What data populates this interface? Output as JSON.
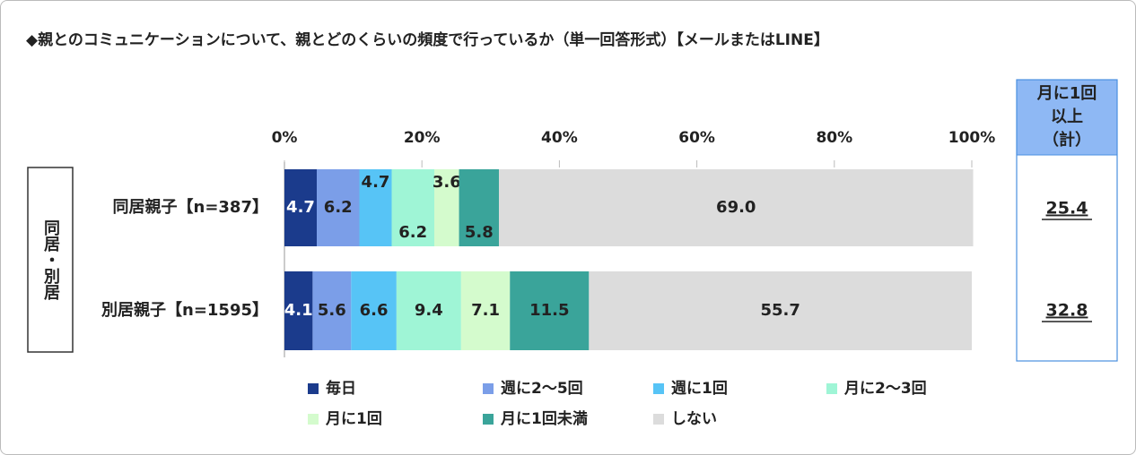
{
  "chart_data": {
    "type": "stacked_bar_horizontal",
    "title": "◆親とのコミュニケーションについて、親とどのくらいの頻度で行っているか（単一回答形式）【メールまたはLINE】",
    "y_label": "同居・別居",
    "categories": [
      "同居親子【n=387】",
      "別居親子【n=1595】"
    ],
    "xlim": [
      0,
      100
    ],
    "xticks": [
      {
        "value": 0,
        "label": "0%"
      },
      {
        "value": 20,
        "label": "20%"
      },
      {
        "value": 40,
        "label": "40%"
      },
      {
        "value": 60,
        "label": "60%"
      },
      {
        "value": 80,
        "label": "80%"
      },
      {
        "value": 100,
        "label": "100%"
      }
    ],
    "series": [
      {
        "name": "毎日",
        "color": "#1b3b8c",
        "values": [
          4.7,
          4.1
        ]
      },
      {
        "name": "週に2～5回",
        "color": "#7b9ee8",
        "values": [
          6.2,
          5.6
        ]
      },
      {
        "name": "週に1回",
        "color": "#57c4f6",
        "values": [
          4.7,
          6.6
        ]
      },
      {
        "name": "月に2～3回",
        "color": "#9ff5d6",
        "values": [
          6.2,
          9.4
        ]
      },
      {
        "name": "月に1回",
        "color": "#d4fbcd",
        "values": [
          3.6,
          7.1
        ]
      },
      {
        "name": "月に1回未満",
        "color": "#3aa49a",
        "values": [
          5.8,
          11.5
        ]
      },
      {
        "name": "しない",
        "color": "#dcdcdc",
        "values": [
          69,
          55.7
        ],
        "value_labels": [
          "69.0",
          "55.7"
        ]
      }
    ],
    "totals": {
      "header": [
        "月に1回",
        "以上",
        "（計）"
      ],
      "values": [
        25.4,
        32.8
      ]
    }
  }
}
